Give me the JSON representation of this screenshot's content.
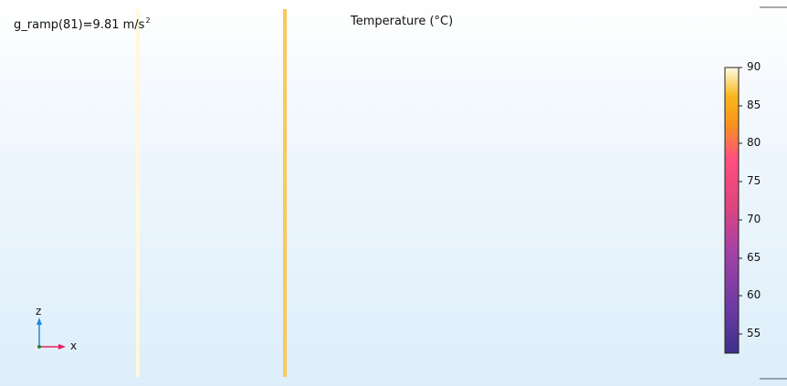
{
  "header": {
    "parameter_name": "g_ramp(81)=9.81 m/s",
    "parameter_exponent": "2",
    "title": "Temperature (°C)"
  },
  "colorbar": {
    "min": 52,
    "max": 90,
    "ticks": [
      "90",
      "85",
      "80",
      "75",
      "70",
      "65",
      "60",
      "55"
    ],
    "tick_values": [
      90,
      85,
      80,
      75,
      70,
      65,
      60,
      55
    ],
    "colormap": [
      "#fcffa4",
      "#fbb61a",
      "#ed6925",
      "#ff4f80",
      "#a241a8",
      "#6a3aa3",
      "#3e2e8c"
    ]
  },
  "axes": {
    "z_label": "z",
    "x_label": "x",
    "z_color": "#1e88e5",
    "x_color": "#e91e63"
  },
  "structure": {
    "top_rail_color": "#f7c85a",
    "bottom_rail_left_color": "#fffbe6",
    "bottom_rail_right_color": "#5a3a9a",
    "right_edge_color": "#e84a7f"
  }
}
